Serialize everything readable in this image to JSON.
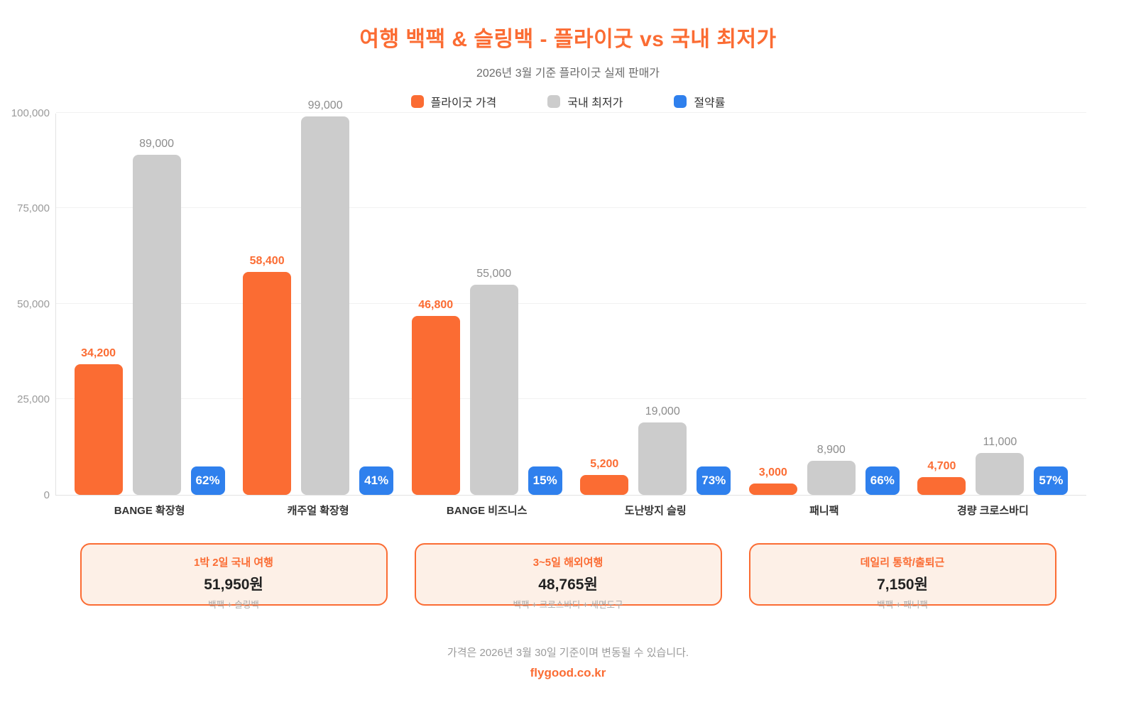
{
  "header": {
    "title": "여행 백팩 & 슬링백 - 플라이굿 vs 국내 최저가",
    "subtitle": "2026년 3월 기준 플라이굿 실제 판매가"
  },
  "legend": [
    {
      "label": "플라이굿 가격",
      "color": "#fb6c33"
    },
    {
      "label": "국내 최저가",
      "color": "#cccccc"
    },
    {
      "label": "절약률",
      "color": "#2f80ed"
    }
  ],
  "chart_data": {
    "type": "bar",
    "categories": [
      "BANGE 확장형",
      "캐주얼 확장형",
      "BANGE 비즈니스",
      "도난방지 슬링",
      "패니팩",
      "경량 크로스바디"
    ],
    "series": [
      {
        "name": "플라이굿 가격",
        "color": "#fb6c33",
        "values": [
          34200,
          58400,
          46800,
          5200,
          3000,
          4700
        ],
        "labels": [
          "34,200",
          "58,400",
          "46,800",
          "5,200",
          "3,000",
          "4,700"
        ]
      },
      {
        "name": "국내 최저가",
        "color": "#cccccc",
        "values": [
          89000,
          99000,
          55000,
          19000,
          8900,
          11000
        ],
        "labels": [
          "89,000",
          "99,000",
          "55,000",
          "19,000",
          "8,900",
          "11,000"
        ]
      }
    ],
    "savings": {
      "name": "절약률",
      "color": "#2f80ed",
      "values": [
        62,
        41,
        15,
        73,
        66,
        57
      ],
      "labels": [
        "62%",
        "41%",
        "15%",
        "73%",
        "66%",
        "57%"
      ]
    },
    "ylim": [
      0,
      100000
    ],
    "yticks": [
      {
        "value": 0,
        "label": "0"
      },
      {
        "value": 25000,
        "label": "25,000"
      },
      {
        "value": 50000,
        "label": "50,000"
      },
      {
        "value": 75000,
        "label": "75,000"
      },
      {
        "value": 100000,
        "label": "100,000"
      }
    ],
    "grid": true,
    "legend_position": "top"
  },
  "cards": [
    {
      "title": "1박 2일 국내 여행",
      "price": "51,950원",
      "items": "백팩 + 슬링백"
    },
    {
      "title": "3~5일 해외여행",
      "price": "48,765원",
      "items": "백팩 + 크로스바디 + 세면도구"
    },
    {
      "title": "데일리 통학/출퇴근",
      "price": "7,150원",
      "items": "백팩 + 패니팩"
    }
  ],
  "footer": {
    "note": "가격은 2026년 3월 30일 기준이며 변동될 수 있습니다.",
    "link": "flygood.co.kr"
  },
  "colors": {
    "accent": "#fb6c33",
    "market": "#cccccc",
    "savings": "#2f80ed",
    "card_bg": "#fdf0e7"
  }
}
